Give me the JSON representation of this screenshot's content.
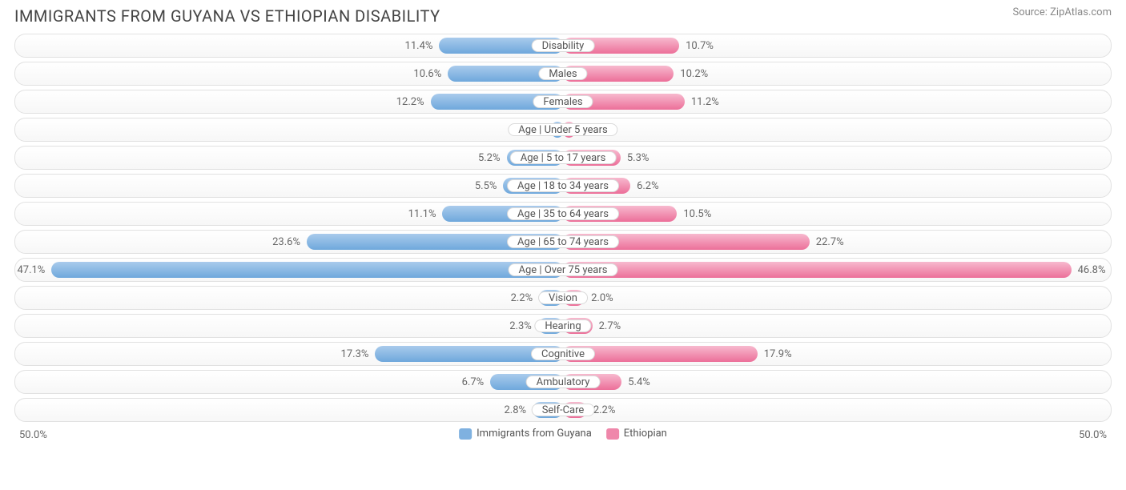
{
  "title": "IMMIGRANTS FROM GUYANA VS ETHIOPIAN DISABILITY",
  "source": "Source: ZipAtlas.com",
  "chart": {
    "type": "diverging-bar",
    "max_pct": 50.0,
    "axis_left_label": "50.0%",
    "axis_right_label": "50.0%",
    "background_color": "#ffffff",
    "row_border_color": "#e1e1e1",
    "row_bg_gradient_top": "#ffffff",
    "row_bg_gradient_bottom": "#f7f7f7",
    "category_pill_bg": "#ffffff",
    "category_pill_border": "#d9d9d9",
    "value_label_color": "#676767",
    "category_label_color": "#555555",
    "title_color": "#444444",
    "source_color": "#888888",
    "title_fontsize": 20,
    "label_fontsize": 13,
    "series": [
      {
        "name": "Immigrants from Guyana",
        "side": "left",
        "bar_gradient_top": "#a9cbec",
        "bar_gradient_bottom": "#6fa8dc",
        "swatch_color": "#7fb1e0"
      },
      {
        "name": "Ethiopian",
        "side": "right",
        "bar_gradient_top": "#f7b9ce",
        "bar_gradient_bottom": "#ec6f99",
        "swatch_color": "#ef87aa"
      }
    ],
    "rows": [
      {
        "category": "Disability",
        "left_val": 11.4,
        "right_val": 10.7,
        "left_label": "11.4%",
        "right_label": "10.7%"
      },
      {
        "category": "Males",
        "left_val": 10.6,
        "right_val": 10.2,
        "left_label": "10.6%",
        "right_label": "10.2%"
      },
      {
        "category": "Females",
        "left_val": 12.2,
        "right_val": 11.2,
        "left_label": "12.2%",
        "right_label": "11.2%"
      },
      {
        "category": "Age | Under 5 years",
        "left_val": 1.0,
        "right_val": 1.1,
        "left_label": "1.0%",
        "right_label": "1.1%"
      },
      {
        "category": "Age | 5 to 17 years",
        "left_val": 5.2,
        "right_val": 5.3,
        "left_label": "5.2%",
        "right_label": "5.3%"
      },
      {
        "category": "Age | 18 to 34 years",
        "left_val": 5.5,
        "right_val": 6.2,
        "left_label": "5.5%",
        "right_label": "6.2%"
      },
      {
        "category": "Age | 35 to 64 years",
        "left_val": 11.1,
        "right_val": 10.5,
        "left_label": "11.1%",
        "right_label": "10.5%"
      },
      {
        "category": "Age | 65 to 74 years",
        "left_val": 23.6,
        "right_val": 22.7,
        "left_label": "23.6%",
        "right_label": "22.7%"
      },
      {
        "category": "Age | Over 75 years",
        "left_val": 47.1,
        "right_val": 46.8,
        "left_label": "47.1%",
        "right_label": "46.8%"
      },
      {
        "category": "Vision",
        "left_val": 2.2,
        "right_val": 2.0,
        "left_label": "2.2%",
        "right_label": "2.0%"
      },
      {
        "category": "Hearing",
        "left_val": 2.3,
        "right_val": 2.7,
        "left_label": "2.3%",
        "right_label": "2.7%"
      },
      {
        "category": "Cognitive",
        "left_val": 17.3,
        "right_val": 17.9,
        "left_label": "17.3%",
        "right_label": "17.9%"
      },
      {
        "category": "Ambulatory",
        "left_val": 6.7,
        "right_val": 5.4,
        "left_label": "6.7%",
        "right_label": "5.4%"
      },
      {
        "category": "Self-Care",
        "left_val": 2.8,
        "right_val": 2.2,
        "left_label": "2.8%",
        "right_label": "2.2%"
      }
    ]
  }
}
